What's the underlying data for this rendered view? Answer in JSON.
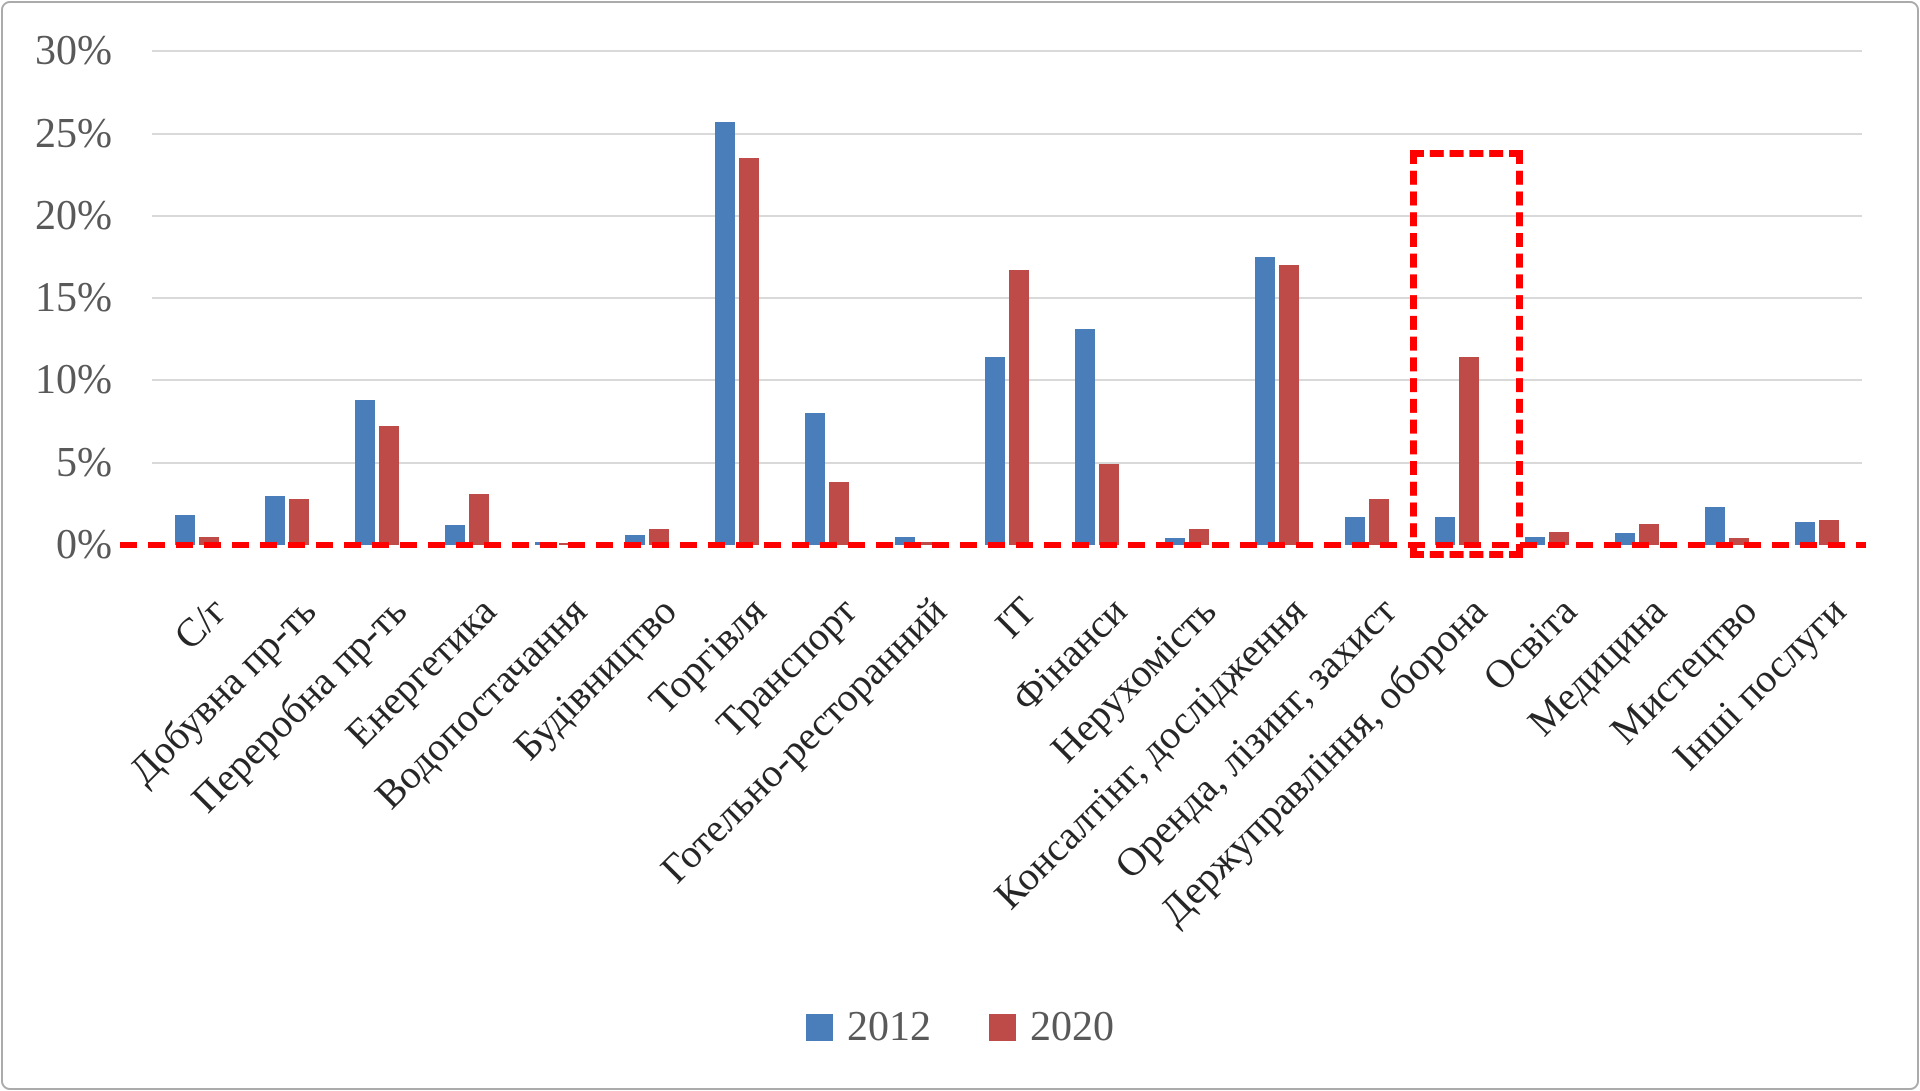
{
  "chart_data": {
    "type": "bar",
    "title": "",
    "xlabel": "",
    "ylabel": "",
    "categories": [
      "С/г",
      "Добувна пр-ть",
      "Переробна пр-ть",
      "Енергетика",
      "Водопостачання",
      "Будівництво",
      "Торгівля",
      "Транспорт",
      "Готельно-ресторанний",
      "ІТ",
      "Фінанси",
      "Нерухомість",
      "Консалтінг, дослідження",
      "Оренда, лізинг, захист",
      "Держуправління, оборона",
      "Освіта",
      "Медицина",
      "Мистецтво",
      "Інші послуги"
    ],
    "series": [
      {
        "name": "2012",
        "color": "#4a7ebb",
        "values": [
          1.8,
          3.0,
          8.8,
          1.2,
          0.2,
          0.6,
          25.7,
          8.0,
          0.5,
          11.4,
          13.1,
          0.4,
          17.5,
          1.7,
          1.7,
          0.5,
          0.7,
          2.3,
          1.4
        ]
      },
      {
        "name": "2020",
        "color": "#be4b48",
        "values": [
          0.5,
          2.8,
          7.2,
          3.1,
          0.1,
          1.0,
          23.5,
          3.8,
          0.2,
          16.7,
          4.9,
          1.0,
          17.0,
          2.8,
          11.4,
          0.8,
          1.3,
          0.4,
          1.5
        ]
      }
    ],
    "y_axis": {
      "min": 0,
      "max": 30,
      "tick_step": 5,
      "tick_labels": [
        "0%",
        "5%",
        "10%",
        "15%",
        "20%",
        "25%",
        "30%"
      ]
    },
    "grid": true,
    "legend_position": "bottom",
    "annotations": {
      "zero_baseline": {
        "style": "dashed",
        "color": "#ff0000"
      },
      "highlight_box": {
        "category": "Держуправління, оборона",
        "style": "dashed",
        "color": "#ff0000"
      }
    }
  }
}
